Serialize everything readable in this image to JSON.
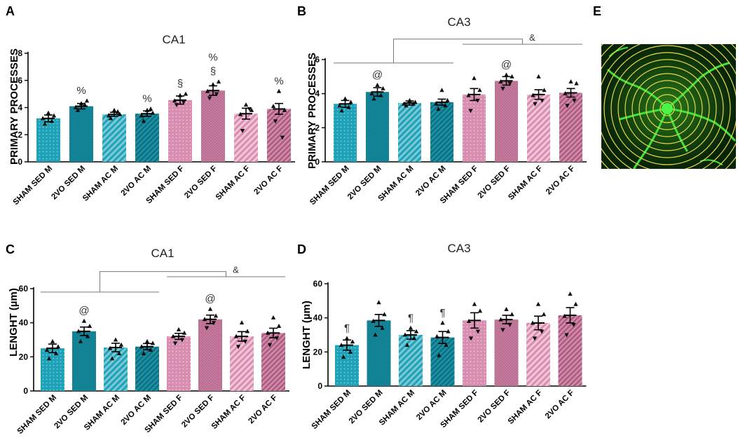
{
  "colors": {
    "male": "#1fa2b8",
    "male_dark": "#15899c",
    "female": "#d98db0",
    "female_dark": "#b76a8f",
    "error_bar": "#000000",
    "bracket": "#777777",
    "micrograph_bg": "#0b2a08",
    "micrograph_cells": "#3fe13a",
    "micrograph_rings": "#e5d84a"
  },
  "panel_e": {
    "letter": "E",
    "image": "sholl-analysis-micrograph"
  },
  "chart_data": [
    {
      "panel": "A",
      "type": "bar",
      "title": "CA1",
      "ylabel": "PRIMARY PROCESSES",
      "xlabel": "",
      "ylim": [
        0,
        8
      ],
      "yticks": [
        "0",
        "2",
        "4",
        "6",
        "8"
      ],
      "yticks_values": [
        0,
        2,
        4,
        6,
        8
      ],
      "categories": [
        "SHAM SED M",
        "2VO SED M",
        "SHAM AC M",
        "2VO AC M",
        "SHAM SED F",
        "2VO SED F",
        "SHAM AC F",
        "2VO AC F"
      ],
      "values": [
        3.2,
        4.1,
        3.5,
        3.55,
        4.55,
        5.25,
        3.55,
        3.9
      ],
      "errors": [
        0.25,
        0.2,
        0.15,
        0.2,
        0.3,
        0.35,
        0.4,
        0.4
      ],
      "points": [
        [
          3.6,
          3.2,
          3.4,
          2.8,
          3.0
        ],
        [
          4.3,
          4.0,
          4.5,
          3.8,
          4.2
        ],
        [
          3.8,
          3.4,
          3.5,
          3.2,
          3.7
        ],
        [
          3.8,
          3.4,
          3.6,
          3.0,
          3.9
        ],
        [
          4.9,
          4.5,
          5.0,
          4.2,
          4.4
        ],
        [
          5.7,
          5.2,
          5.9,
          4.7,
          5.0
        ],
        [
          4.2,
          3.5,
          3.8,
          2.3,
          3.9
        ],
        [
          5.2,
          4.1,
          3.8,
          3.0,
          1.8
        ]
      ],
      "annotations": [
        {
          "category": "2VO SED M",
          "text": "%",
          "level": 1
        },
        {
          "category": "2VO AC M",
          "text": "%",
          "level": 1
        },
        {
          "category": "SHAM SED F",
          "text": "§",
          "level": 1
        },
        {
          "category": "2VO SED F",
          "text": "§",
          "level": 1
        },
        {
          "category": "2VO SED F",
          "text": "%",
          "level": 2
        },
        {
          "category": "2VO AC F",
          "text": "%",
          "level": 1
        }
      ],
      "brackets": []
    },
    {
      "panel": "B",
      "type": "bar",
      "title": "CA3",
      "ylabel": "PRIMARY PROCESSES",
      "xlabel": "",
      "ylim": [
        0,
        6
      ],
      "yticks": [
        "0",
        "2",
        "4",
        "6"
      ],
      "yticks_values": [
        0,
        2,
        4,
        6
      ],
      "categories": [
        "SHAM SED M",
        "2VO SED M",
        "SHAM AC M",
        "2VO AC M",
        "SHAM SED F",
        "2VO SED F",
        "SHAM AC F",
        "2VO AC F"
      ],
      "values": [
        3.4,
        4.1,
        3.45,
        3.5,
        3.95,
        4.75,
        3.95,
        4.05
      ],
      "errors": [
        0.2,
        0.25,
        0.12,
        0.18,
        0.35,
        0.25,
        0.28,
        0.25
      ],
      "points": [
        [
          3.7,
          3.3,
          3.5,
          3.0,
          3.2
        ],
        [
          4.5,
          4.0,
          4.3,
          3.7,
          3.9
        ],
        [
          3.6,
          3.4,
          3.5,
          3.3,
          3.4
        ],
        [
          4.2,
          3.4,
          3.6,
          3.1,
          3.3
        ],
        [
          4.9,
          3.9,
          4.2,
          3.0,
          3.6
        ],
        [
          5.1,
          4.7,
          5.0,
          4.3,
          4.6
        ],
        [
          5.0,
          3.9,
          4.2,
          3.4,
          3.6
        ],
        [
          4.7,
          4.0,
          4.6,
          3.3,
          3.6
        ]
      ],
      "annotations": [
        {
          "category": "2VO SED M",
          "text": "@",
          "level": 1
        },
        {
          "category": "2VO SED F",
          "text": "@",
          "level": 1
        }
      ],
      "brackets": [
        {
          "from": 0,
          "to": 3,
          "y": 5.8,
          "tier": 1
        },
        {
          "from": 4,
          "to": 7,
          "y": 6.9,
          "tier": 1
        },
        {
          "mid_from": [
            0,
            3
          ],
          "mid_to": [
            4,
            7
          ],
          "y": 7.2,
          "text": "&",
          "tier": 2
        }
      ]
    },
    {
      "panel": "C",
      "type": "bar",
      "title": "CA1",
      "ylabel": "LENGHT (µm)",
      "xlabel": "",
      "ylim": [
        0,
        60
      ],
      "yticks": [
        "0",
        "20",
        "40",
        "60"
      ],
      "yticks_values": [
        0,
        20,
        40,
        60
      ],
      "categories": [
        "SHAM SED M",
        "2VO SED M",
        "SHAM AC M",
        "2VO AC M",
        "SHAM SED F",
        "2VO SED F",
        "SHAM AC F",
        "2VO AC F"
      ],
      "values": [
        25,
        35,
        25.5,
        26,
        32,
        42,
        32,
        34
      ],
      "errors": [
        2.5,
        2.5,
        2.5,
        1.8,
        1.8,
        2.5,
        2.8,
        2.8
      ],
      "points": [
        [
          29,
          24,
          26,
          19,
          22
        ],
        [
          41,
          35,
          38,
          29,
          32
        ],
        [
          30,
          25,
          27,
          19,
          22
        ],
        [
          29,
          26,
          28,
          22,
          24
        ],
        [
          36,
          32,
          34,
          28,
          30
        ],
        [
          48,
          42,
          44,
          37,
          40
        ],
        [
          40,
          32,
          35,
          26,
          29
        ],
        [
          43,
          34,
          38,
          27,
          31
        ]
      ],
      "annotations": [
        {
          "category": "2VO SED M",
          "text": "@",
          "level": 1
        },
        {
          "category": "2VO SED F",
          "text": "@",
          "level": 1
        }
      ],
      "brackets": [
        {
          "from": 0,
          "to": 3,
          "y": 58,
          "tier": 1
        },
        {
          "from": 4,
          "to": 7,
          "y": 67,
          "tier": 1
        },
        {
          "mid_from": [
            0,
            3
          ],
          "mid_to": [
            4,
            7
          ],
          "y": 70,
          "text": "&",
          "tier": 2
        }
      ]
    },
    {
      "panel": "D",
      "type": "bar",
      "title": "CA3",
      "ylabel": "LENGHT (µm)",
      "xlabel": "",
      "ylim": [
        0,
        60
      ],
      "yticks": [
        "0",
        "20",
        "40",
        "60"
      ],
      "yticks_values": [
        0,
        20,
        40,
        60
      ],
      "categories": [
        "SHAM SED M",
        "2VO SED M",
        "SHAM AC M",
        "2VO AC M",
        "SHAM SED F",
        "2VO SED F",
        "SHAM AC F",
        "2VO AC F"
      ],
      "values": [
        24,
        38.5,
        30,
        28.5,
        38.5,
        39,
        37,
        41.5
      ],
      "errors": [
        3,
        3.5,
        2.5,
        3.5,
        4.5,
        2.5,
        4,
        4.5
      ],
      "points": [
        [
          28,
          24,
          26,
          17,
          20
        ],
        [
          49,
          38,
          42,
          30,
          34
        ],
        [
          34,
          30,
          32,
          24,
          28
        ],
        [
          37,
          29,
          32,
          18,
          24
        ],
        [
          48,
          38,
          44,
          28,
          32
        ],
        [
          45,
          39,
          42,
          33,
          36
        ],
        [
          48,
          37,
          42,
          28,
          32
        ],
        [
          54,
          41,
          48,
          30,
          36
        ]
      ],
      "annotations": [
        {
          "category": "SHAM SED M",
          "text": "¶",
          "level": 1
        },
        {
          "category": "SHAM AC M",
          "text": "¶",
          "level": 1
        },
        {
          "category": "2VO AC M",
          "text": "¶",
          "level": 1
        }
      ],
      "brackets": []
    }
  ]
}
